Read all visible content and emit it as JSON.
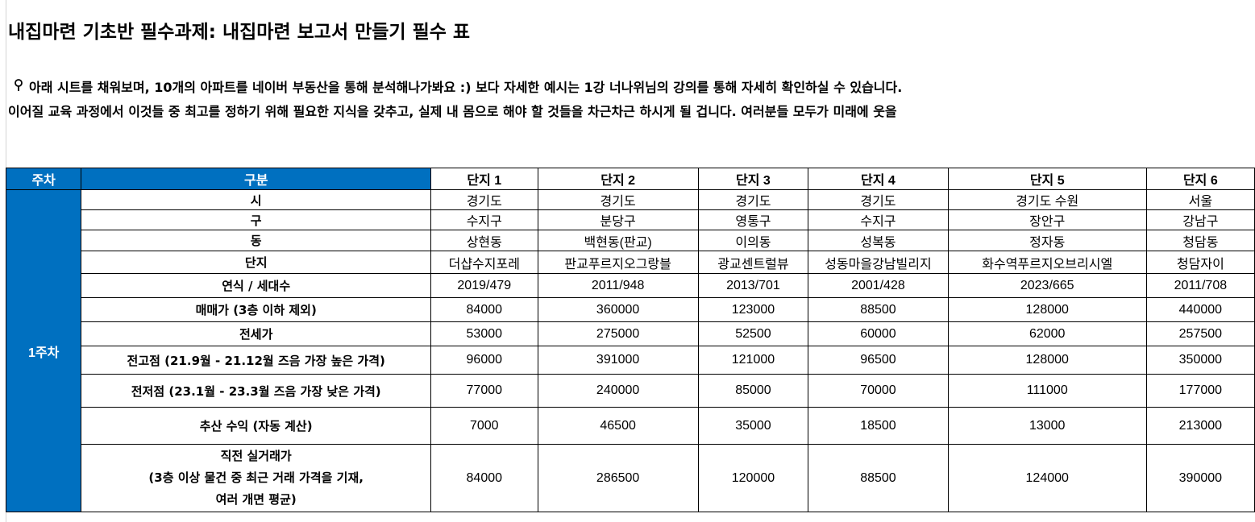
{
  "title": "내집마련 기초반 필수과제:  내집마련 보고서 만들기 필수 표",
  "notes": {
    "line1_icon": "pin-icon",
    "line1": "아래 시트를 채워보며, 10개의 아파트를 네이버 부동산을 통해 분석해나가봐요 :) 보다 자세한 예시는 1강 너나위님의 강의를 통해 자세히 확인하실 수 있습니다.",
    "line2": "이어질 교육 과정에서 이것들 중 최고를 정하기 위해 필요한 지식을 갖추고, 실제 내 몸으로 해야 할 것들을 차근차근 하시게 될 겁니다. 여러분들 모두가 미래에 웃을"
  },
  "table": {
    "header": {
      "week": "주차",
      "category": "구분",
      "complexes": [
        "단지 1",
        "단지 2",
        "단지 3",
        "단지 4",
        "단지 5",
        "단지 6"
      ]
    },
    "week_label": "1주차",
    "rows": [
      {
        "label": "시",
        "values": [
          "경기도",
          "경기도",
          "경기도",
          "경기도",
          "경기도 수원",
          "서울"
        ]
      },
      {
        "label": "구",
        "values": [
          "수지구",
          "분당구",
          "영통구",
          "수지구",
          "장안구",
          "강남구"
        ]
      },
      {
        "label": "동",
        "values": [
          "상현동",
          "백현동(판교)",
          "이의동",
          "성복동",
          "정자동",
          "청담동"
        ]
      },
      {
        "label": "단지",
        "values": [
          "더샵수지포레",
          "판교푸르지오그랑블",
          "광교센트럴뷰",
          "성동마을강남빌리지",
          "화수역푸르지오브리시엘",
          "청담자이"
        ]
      },
      {
        "label": "연식 / 세대수",
        "values": [
          "2019/479",
          "2011/948",
          "2013/701",
          "2001/428",
          "2023/665",
          "2011/708"
        ]
      },
      {
        "label": "매매가 (3층 이하 제외)",
        "values": [
          "84000",
          "360000",
          "123000",
          "88500",
          "128000",
          "440000"
        ]
      },
      {
        "label": "전세가",
        "values": [
          "53000",
          "275000",
          "52500",
          "60000",
          "62000",
          "257500"
        ]
      },
      {
        "label": "전고점 (21.9월 - 21.12월 즈음 가장 높은 가격)",
        "values": [
          "96000",
          "391000",
          "121000",
          "96500",
          "128000",
          "350000"
        ]
      },
      {
        "label": "전저점 (23.1월 - 23.3월 즈음 가장 낮은 가격)",
        "values": [
          "77000",
          "240000",
          "85000",
          "70000",
          "111000",
          "177000"
        ]
      },
      {
        "label": "추산 수익 (자동 계산)",
        "values": [
          "7000",
          "46500",
          "35000",
          "18500",
          "13000",
          "213000"
        ]
      }
    ],
    "last_row": {
      "label_lines": [
        "직전 실거래가",
        "(3층 이상 물건 중 최근 거래 가격을 기재,",
        "여러 개면 평균)"
      ],
      "values": [
        "84000",
        "286500",
        "120000",
        "88500",
        "124000",
        "390000"
      ]
    }
  }
}
